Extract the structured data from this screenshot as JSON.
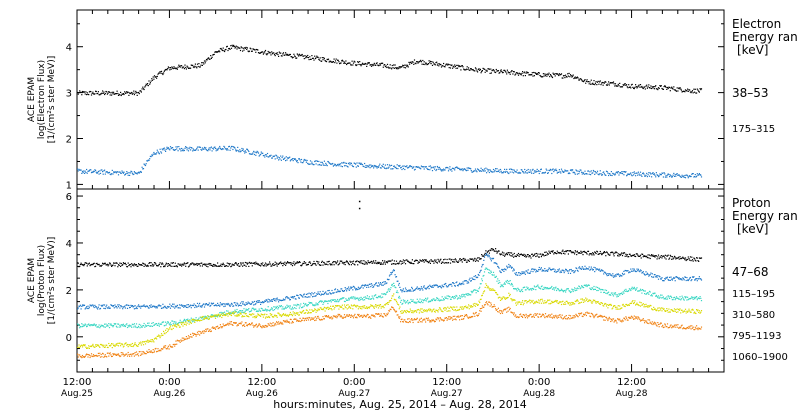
{
  "chart_data": [
    {
      "type": "scatter",
      "panel": "electron",
      "ylabel": [
        "ACE EPAM",
        "log(Electron Flux)",
        "[1/(cm²s ster MeV)]"
      ],
      "ylim": [
        0.9,
        4.8
      ],
      "yticks": [
        1,
        2,
        3,
        4
      ],
      "xlim": [
        0,
        84
      ],
      "legend_placement": "right",
      "legend_title": [
        "Electron",
        "Energy ran",
        "[keV]"
      ],
      "series": [
        {
          "name": "38–53",
          "color": "#000000",
          "knots": [
            [
              0,
              3.0
            ],
            [
              8,
              3.0
            ],
            [
              10,
              3.35
            ],
            [
              12,
              3.55
            ],
            [
              16,
              3.6
            ],
            [
              18,
              3.9
            ],
            [
              20,
              4.0
            ],
            [
              22,
              3.95
            ],
            [
              26,
              3.85
            ],
            [
              30,
              3.78
            ],
            [
              36,
              3.65
            ],
            [
              40,
              3.6
            ],
            [
              42,
              3.55
            ],
            [
              44,
              3.7
            ],
            [
              46,
              3.65
            ],
            [
              50,
              3.55
            ],
            [
              52,
              3.5
            ],
            [
              56,
              3.45
            ],
            [
              60,
              3.4
            ],
            [
              63,
              3.38
            ],
            [
              64,
              3.4
            ],
            [
              66,
              3.25
            ],
            [
              70,
              3.2
            ],
            [
              72,
              3.15
            ],
            [
              76,
              3.12
            ],
            [
              80,
              3.05
            ],
            [
              81,
              3.05
            ]
          ]
        },
        {
          "name": "175–315",
          "color": "#1f78c8",
          "knots": [
            [
              0,
              1.3
            ],
            [
              8,
              1.25
            ],
            [
              9,
              1.5
            ],
            [
              10,
              1.7
            ],
            [
              12,
              1.8
            ],
            [
              16,
              1.78
            ],
            [
              20,
              1.8
            ],
            [
              23,
              1.7
            ],
            [
              26,
              1.6
            ],
            [
              30,
              1.5
            ],
            [
              34,
              1.45
            ],
            [
              40,
              1.4
            ],
            [
              48,
              1.35
            ],
            [
              56,
              1.3
            ],
            [
              62,
              1.3
            ],
            [
              70,
              1.25
            ],
            [
              76,
              1.22
            ],
            [
              81,
              1.2
            ]
          ]
        }
      ]
    },
    {
      "type": "scatter",
      "panel": "proton",
      "ylabel": [
        "ACE EPAM",
        "log(Proton Flux)",
        "[1/(cm²s ster MeV)]"
      ],
      "ylim": [
        -1.5,
        6.3
      ],
      "yticks": [
        0,
        2,
        4,
        6
      ],
      "xlim": [
        0,
        84
      ],
      "xlabel": "hours:minutes, Aug. 25, 2014 – Aug. 28, 2014",
      "xticks": [
        {
          "x": 0,
          "time": "12:00",
          "date": "Aug.25"
        },
        {
          "x": 12,
          "time": "0:00",
          "date": "Aug.26"
        },
        {
          "x": 24,
          "time": "12:00",
          "date": "Aug.26"
        },
        {
          "x": 36,
          "time": "0:00",
          "date": "Aug.27"
        },
        {
          "x": 48,
          "time": "12:00",
          "date": "Aug.27"
        },
        {
          "x": 60,
          "time": "0:00",
          "date": "Aug.28"
        },
        {
          "x": 72,
          "time": "12:00",
          "date": "Aug.28"
        }
      ],
      "legend_placement": "right",
      "legend_title": [
        "Proton",
        "Energy ran",
        "[keV]"
      ],
      "series": [
        {
          "name": "47–68",
          "color": "#000000",
          "knots": [
            [
              0,
              3.1
            ],
            [
              20,
              3.1
            ],
            [
              30,
              3.15
            ],
            [
              40,
              3.2
            ],
            [
              48,
              3.25
            ],
            [
              52,
              3.3
            ],
            [
              53,
              3.6
            ],
            [
              54,
              3.75
            ],
            [
              55,
              3.55
            ],
            [
              57,
              3.5
            ],
            [
              58,
              3.45
            ],
            [
              60,
              3.5
            ],
            [
              62,
              3.65
            ],
            [
              66,
              3.6
            ],
            [
              70,
              3.55
            ],
            [
              74,
              3.45
            ],
            [
              78,
              3.4
            ],
            [
              81,
              3.3
            ]
          ],
          "extra_points": [
            [
              36.6,
              5.8
            ],
            [
              36.6,
              5.5
            ]
          ]
        },
        {
          "name": "115–195",
          "color": "#1f78c8",
          "knots": [
            [
              0,
              1.3
            ],
            [
              8,
              1.3
            ],
            [
              14,
              1.35
            ],
            [
              20,
              1.4
            ],
            [
              24,
              1.5
            ],
            [
              28,
              1.7
            ],
            [
              34,
              2.0
            ],
            [
              38,
              2.2
            ],
            [
              40,
              2.3
            ],
            [
              41,
              2.9
            ],
            [
              42,
              2.0
            ],
            [
              46,
              2.15
            ],
            [
              50,
              2.3
            ],
            [
              52,
              2.6
            ],
            [
              53,
              3.5
            ],
            [
              54,
              3.3
            ],
            [
              55,
              2.8
            ],
            [
              56,
              3.05
            ],
            [
              57,
              2.7
            ],
            [
              60,
              2.9
            ],
            [
              64,
              2.8
            ],
            [
              66,
              3.0
            ],
            [
              70,
              2.6
            ],
            [
              72,
              2.9
            ],
            [
              76,
              2.5
            ],
            [
              81,
              2.5
            ]
          ]
        },
        {
          "name": "310–580",
          "color": "#38d6c2",
          "knots": [
            [
              0,
              0.5
            ],
            [
              8,
              0.5
            ],
            [
              12,
              0.6
            ],
            [
              16,
              0.8
            ],
            [
              20,
              1.1
            ],
            [
              24,
              1.2
            ],
            [
              28,
              1.3
            ],
            [
              34,
              1.6
            ],
            [
              38,
              1.7
            ],
            [
              40,
              1.8
            ],
            [
              41,
              2.3
            ],
            [
              42,
              1.5
            ],
            [
              46,
              1.6
            ],
            [
              50,
              1.75
            ],
            [
              52,
              2.0
            ],
            [
              53,
              2.9
            ],
            [
              54,
              2.7
            ],
            [
              55,
              2.2
            ],
            [
              56,
              2.4
            ],
            [
              57,
              2.0
            ],
            [
              60,
              2.15
            ],
            [
              64,
              2.0
            ],
            [
              66,
              2.2
            ],
            [
              70,
              1.8
            ],
            [
              72,
              2.1
            ],
            [
              76,
              1.7
            ],
            [
              81,
              1.65
            ]
          ]
        },
        {
          "name": "795–1193",
          "color": "#d9d900",
          "knots": [
            [
              0,
              -0.4
            ],
            [
              8,
              -0.3
            ],
            [
              10,
              -0.1
            ],
            [
              12,
              0.4
            ],
            [
              16,
              0.8
            ],
            [
              20,
              1.0
            ],
            [
              24,
              0.9
            ],
            [
              28,
              1.0
            ],
            [
              34,
              1.3
            ],
            [
              38,
              1.3
            ],
            [
              40,
              1.35
            ],
            [
              41,
              1.8
            ],
            [
              42,
              1.1
            ],
            [
              46,
              1.15
            ],
            [
              50,
              1.25
            ],
            [
              52,
              1.4
            ],
            [
              53,
              2.2
            ],
            [
              54,
              2.0
            ],
            [
              55,
              1.6
            ],
            [
              56,
              1.8
            ],
            [
              57,
              1.45
            ],
            [
              60,
              1.55
            ],
            [
              64,
              1.45
            ],
            [
              66,
              1.6
            ],
            [
              70,
              1.25
            ],
            [
              72,
              1.5
            ],
            [
              76,
              1.15
            ],
            [
              81,
              1.1
            ]
          ]
        },
        {
          "name": "1060–1900",
          "color": "#f08010",
          "knots": [
            [
              0,
              -0.8
            ],
            [
              8,
              -0.7
            ],
            [
              12,
              -0.4
            ],
            [
              14,
              0.0
            ],
            [
              16,
              0.2
            ],
            [
              20,
              0.6
            ],
            [
              24,
              0.5
            ],
            [
              28,
              0.7
            ],
            [
              34,
              0.9
            ],
            [
              38,
              0.9
            ],
            [
              40,
              0.95
            ],
            [
              41,
              1.3
            ],
            [
              42,
              0.7
            ],
            [
              46,
              0.75
            ],
            [
              50,
              0.85
            ],
            [
              52,
              1.0
            ],
            [
              53,
              1.5
            ],
            [
              54,
              1.35
            ],
            [
              55,
              1.05
            ],
            [
              56,
              1.2
            ],
            [
              57,
              0.9
            ],
            [
              60,
              0.95
            ],
            [
              64,
              0.85
            ],
            [
              66,
              1.0
            ],
            [
              70,
              0.7
            ],
            [
              72,
              0.85
            ],
            [
              76,
              0.5
            ],
            [
              81,
              0.4
            ]
          ]
        }
      ]
    }
  ]
}
